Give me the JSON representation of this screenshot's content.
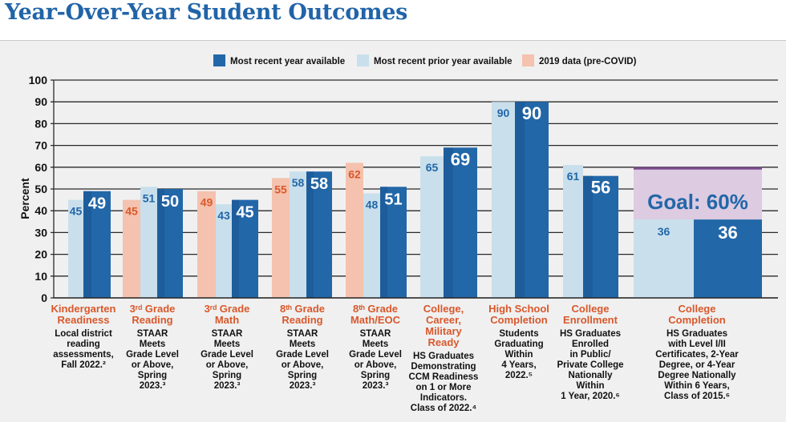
{
  "page": {
    "title": "Year-Over-Year Student Outcomes"
  },
  "chart_data": {
    "type": "bar",
    "ylabel": "Percent",
    "ylim": [
      0,
      100
    ],
    "yticks": [
      0,
      10,
      20,
      30,
      40,
      50,
      60,
      70,
      80,
      90,
      100
    ],
    "legend": [
      {
        "key": "recent",
        "label": "Most recent year available",
        "color": "#2267a8"
      },
      {
        "key": "prior",
        "label": "Most recent prior year available",
        "color": "#c9dfec"
      },
      {
        "key": "y2019",
        "label": "2019 data (pre-COVID)",
        "color": "#f4c2ae"
      }
    ],
    "colors": {
      "recent": "#2267a8",
      "recent_dark": "#1a5591",
      "prior": "#c9dfec",
      "y2019": "#f4c2ae",
      "goal_fill": "#dccbe1",
      "goal_line": "#7a4a8c",
      "goal_text": "#2267a8",
      "label_2019": "#d9582b",
      "axis": "#222222"
    },
    "categories": [
      {
        "name": "Kindergarten Readiness",
        "head": [
          "Kindergarten",
          "Readiness"
        ],
        "sub": [
          "Local district",
          "reading",
          "assessments,",
          "Fall 2022.²"
        ],
        "y2019": null,
        "prior": 45,
        "recent": 49
      },
      {
        "name": "3rd Grade Reading",
        "head": [
          "3ʳᵈ Grade",
          "Reading"
        ],
        "sub": [
          "STAAR",
          "Meets",
          "Grade Level",
          "or Above,",
          "Spring",
          "2023.³"
        ],
        "y2019": 45,
        "prior": 51,
        "recent": 50
      },
      {
        "name": "3rd Grade Math",
        "head": [
          "3ʳᵈ Grade",
          "Math"
        ],
        "sub": [
          "STAAR",
          "Meets",
          "Grade Level",
          "or Above,",
          "Spring",
          "2023.³"
        ],
        "y2019": 49,
        "prior": 43,
        "recent": 45
      },
      {
        "name": "8th Grade Reading",
        "head": [
          "8ᵗʰ Grade",
          "Reading"
        ],
        "sub": [
          "STAAR",
          "Meets",
          "Grade Level",
          "or Above,",
          "Spring",
          "2023.³"
        ],
        "y2019": 55,
        "prior": 58,
        "recent": 58
      },
      {
        "name": "8th Grade Math/EOC",
        "head": [
          "8ᵗʰ Grade",
          "Math/EOC"
        ],
        "sub": [
          "STAAR",
          "Meets",
          "Grade Level",
          "or Above,",
          "Spring",
          "2023.³"
        ],
        "y2019": 62,
        "prior": 48,
        "recent": 51
      },
      {
        "name": "College, Career, Military Ready",
        "head": [
          "College,",
          "Career,",
          "Military",
          "Ready"
        ],
        "sub": [
          "HS Graduates",
          "Demonstrating",
          "CCM Readiness",
          "on 1 or More",
          "Indicators.",
          "Class of 2022.⁴"
        ],
        "y2019": null,
        "prior": 65,
        "recent": 69
      },
      {
        "name": "High School Completion",
        "head": [
          "High School",
          "Completion"
        ],
        "sub": [
          "Students",
          "Graduating",
          "Within",
          "4 Years,",
          "2022.⁵"
        ],
        "y2019": null,
        "prior": 90,
        "recent": 90
      },
      {
        "name": "College Enrollment",
        "head": [
          "College",
          "Enrollment"
        ],
        "sub": [
          "HS Graduates",
          "Enrolled",
          "in Public/",
          "Private College",
          "Nationally",
          "Within",
          "1 Year, 2020.⁶"
        ],
        "y2019": null,
        "prior": 61,
        "recent": 56
      },
      {
        "name": "College Completion",
        "head": [
          "College",
          "Completion"
        ],
        "sub": [
          "HS Graduates",
          "with Level I/II",
          "Certificates, 2-Year",
          "Degree, or 4-Year",
          "Degree Nationally",
          "Within 6 Years,",
          "Class of 2015.⁶"
        ],
        "y2019": null,
        "prior": 36,
        "recent": 36
      }
    ],
    "goal": {
      "category": "College Completion",
      "value": 60,
      "label": "Goal: 60%"
    }
  }
}
